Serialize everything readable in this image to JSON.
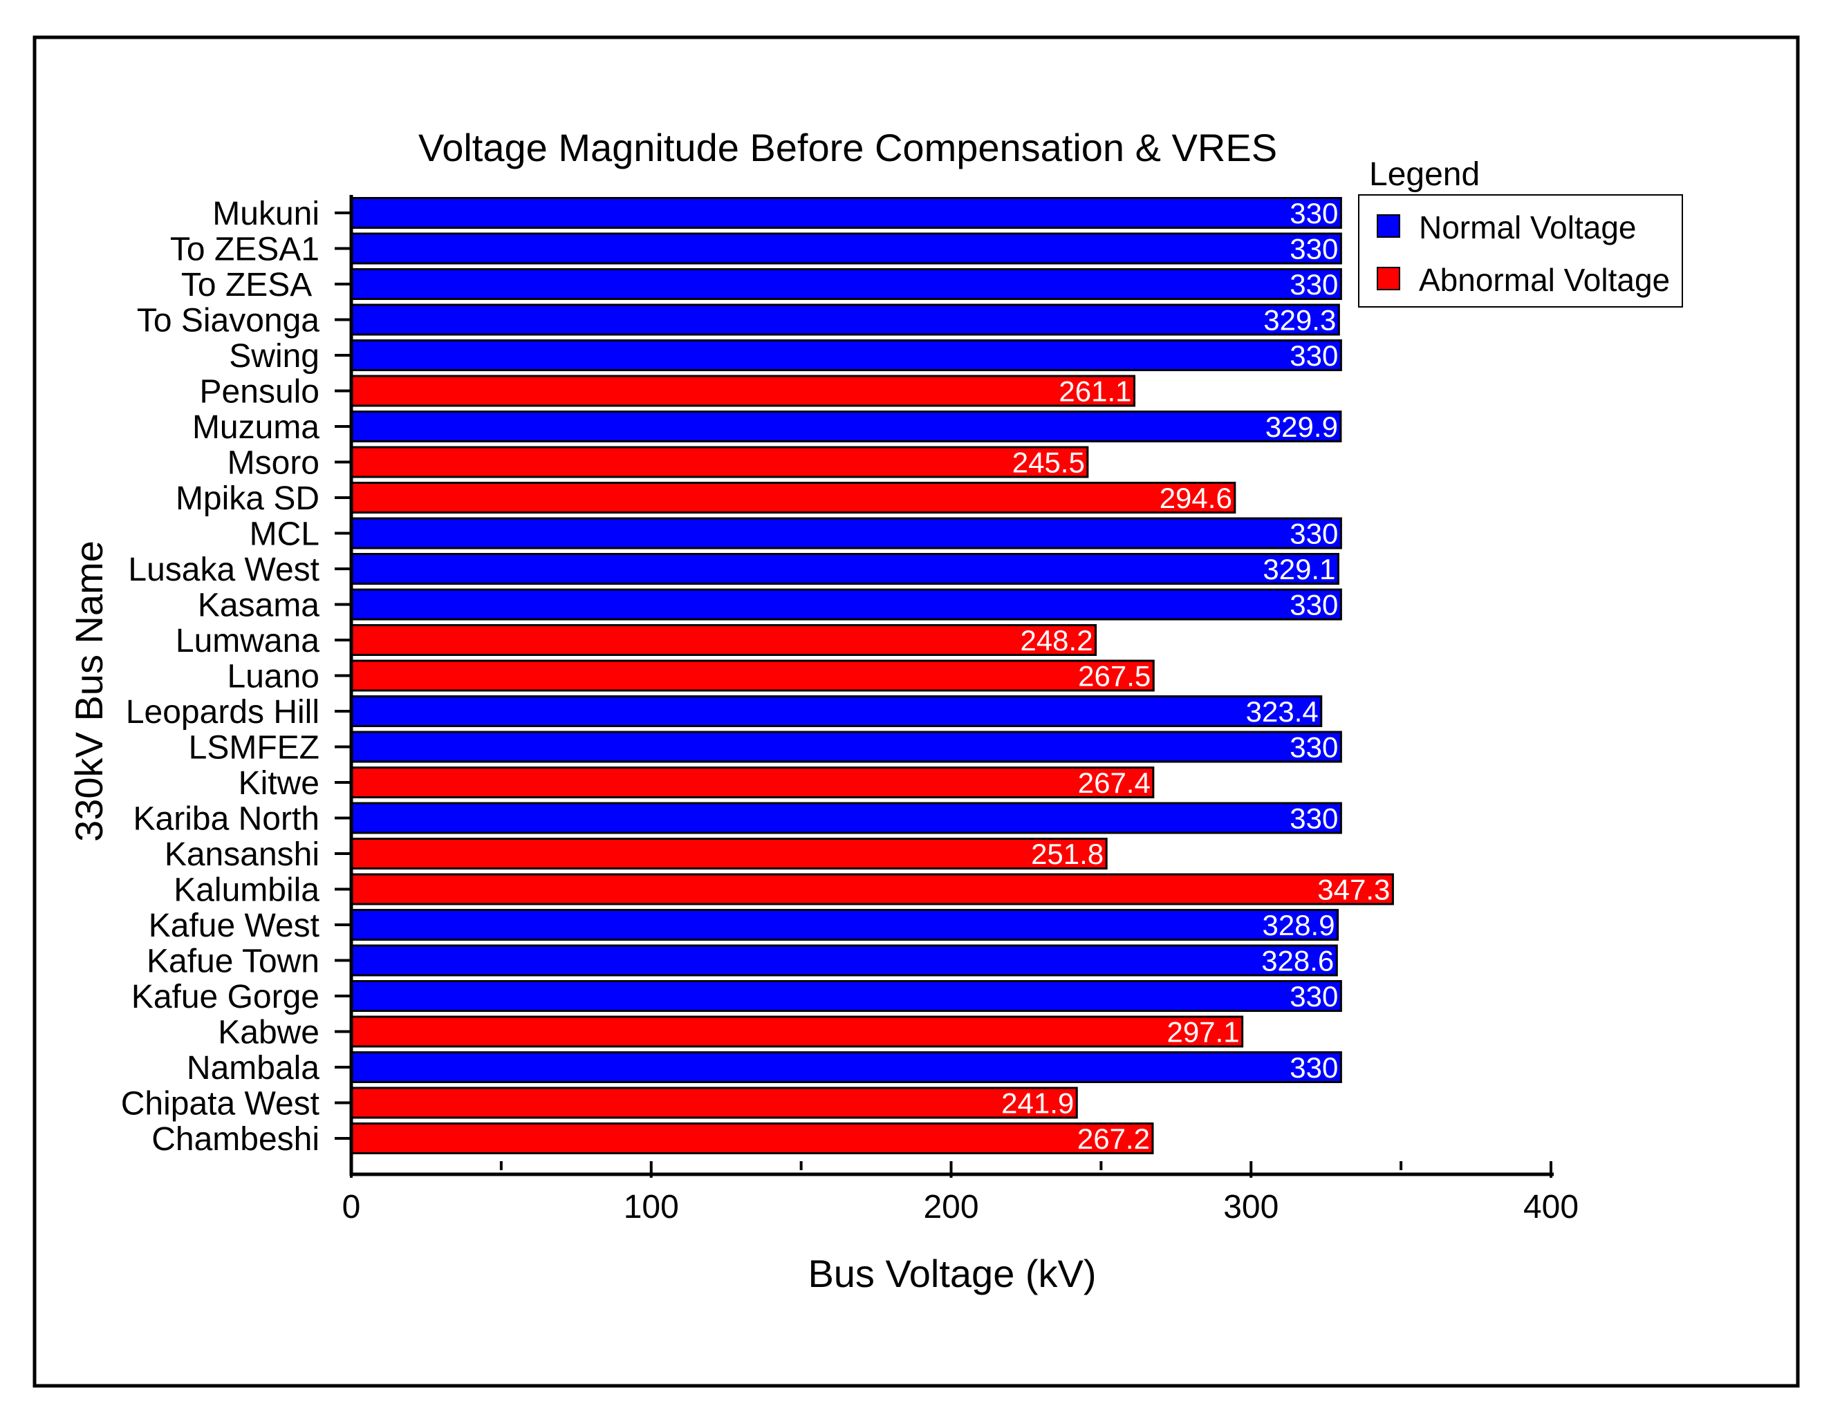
{
  "chart_data": {
    "type": "bar",
    "orientation": "horizontal",
    "title": "Voltage Magnitude Before Compensation & VRES",
    "xlabel": "Bus Voltage (kV)",
    "ylabel": "330kV Bus Name",
    "xlim": [
      0,
      400
    ],
    "xticks": [
      "0",
      "100",
      "200",
      "300",
      "400"
    ],
    "categories": [
      "Mukuni",
      "To ZESA1",
      "To ZESA ",
      "To Siavonga",
      "Swing",
      "Pensulo",
      "Muzuma",
      "Msoro",
      "Mpika SD",
      "MCL",
      "Lusaka West",
      "Kasama",
      "Lumwana",
      "Luano",
      "Leopards Hill",
      "LSMFEZ",
      "Kitwe",
      "Kariba North",
      "Kansanshi",
      "Kalumbila",
      "Kafue West",
      "Kafue Town",
      "Kafue Gorge",
      "Kabwe",
      "Nambala",
      "Chipata West",
      "Chambeshi"
    ],
    "values": [
      330,
      330,
      330,
      329.3,
      330,
      261.1,
      329.9,
      245.5,
      294.6,
      330,
      329.1,
      330,
      248.2,
      267.5,
      323.4,
      330,
      267.4,
      330,
      251.8,
      347.3,
      328.9,
      328.6,
      330,
      297.1,
      330,
      241.9,
      267.2
    ],
    "labels": [
      "330",
      "330",
      "330",
      "329.3",
      "330",
      "261.1",
      "329.9",
      "245.5",
      "294.6",
      "330",
      "329.1",
      "330",
      "248.2",
      "267.5",
      "323.4",
      "330",
      "267.4",
      "330",
      "251.8",
      "347.3",
      "328.9",
      "328.6",
      "330",
      "297.1",
      "330",
      "241.9",
      "267.2"
    ],
    "status": [
      "normal",
      "normal",
      "normal",
      "normal",
      "normal",
      "abnormal",
      "normal",
      "abnormal",
      "abnormal",
      "normal",
      "normal",
      "normal",
      "abnormal",
      "abnormal",
      "normal",
      "normal",
      "abnormal",
      "normal",
      "abnormal",
      "abnormal",
      "normal",
      "normal",
      "normal",
      "abnormal",
      "normal",
      "abnormal",
      "abnormal"
    ],
    "legend": {
      "title": "Legend",
      "position": "top-right",
      "entries": [
        {
          "key": "normal",
          "label": "Normal Voltage"
        },
        {
          "key": "abnormal",
          "label": "Abnormal Voltage"
        }
      ]
    },
    "colors": {
      "normal": "#0000ff",
      "abnormal": "#ff0000",
      "outline": "#000000",
      "label_text": "#ffffff"
    }
  }
}
